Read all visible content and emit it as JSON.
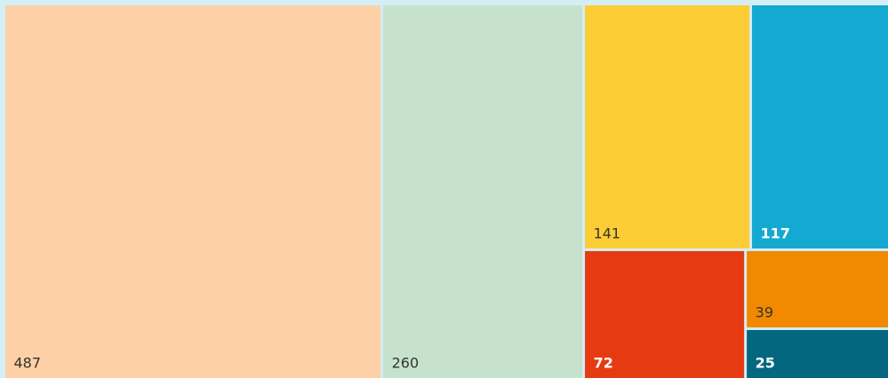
{
  "chart_data": {
    "type": "treemap",
    "values": [
      487,
      260,
      141,
      117,
      72,
      39,
      25
    ],
    "colors": [
      "#fdd1a5",
      "#c6e2cc",
      "#fccd34",
      "#13a9d1",
      "#e63b12",
      "#f18a00",
      "#02677f"
    ]
  }
}
